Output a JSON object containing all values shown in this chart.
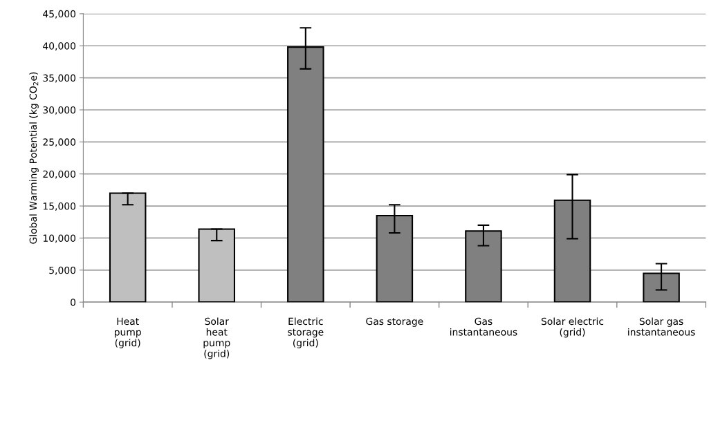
{
  "chart_data": {
    "type": "bar",
    "ylabel": "Global Warming Potential (kg CO$_{2}$e)",
    "categories": [
      "Heat\npump\n(grid)",
      "Solar\nheat\npump\n(grid)",
      "Electric\nstorage\n(grid)",
      "Gas storage",
      "Gas\ninstantaneous",
      "Solar electric\n(grid)",
      "Solar gas\ninstantaneous"
    ],
    "values": [
      17000,
      11400,
      39800,
      13500,
      11100,
      15900,
      4500
    ],
    "colors": [
      "#bfbfbf",
      "#bfbfbf",
      "#808080",
      "#808080",
      "#808080",
      "#808080",
      "#808080"
    ],
    "errors": [
      [
        15200,
        17000
      ],
      [
        9600,
        11400
      ],
      [
        36400,
        42800
      ],
      [
        10800,
        15200
      ],
      [
        8800,
        12000
      ],
      [
        9900,
        19900
      ],
      [
        1900,
        6000
      ]
    ],
    "ylim": [
      0,
      45000
    ],
    "yticks": [
      {
        "value": 0,
        "label": "0"
      },
      {
        "value": 5000,
        "label": "5,000"
      },
      {
        "value": 10000,
        "label": "10,000"
      },
      {
        "value": 15000,
        "label": "15,000"
      },
      {
        "value": 20000,
        "label": "20,000"
      },
      {
        "value": 25000,
        "label": "25,000"
      },
      {
        "value": 30000,
        "label": "30,000"
      },
      {
        "value": 35000,
        "label": "35,000"
      },
      {
        "value": 40000,
        "label": "40,000"
      },
      {
        "value": 45000,
        "label": "45,000"
      }
    ],
    "grid": "y"
  }
}
